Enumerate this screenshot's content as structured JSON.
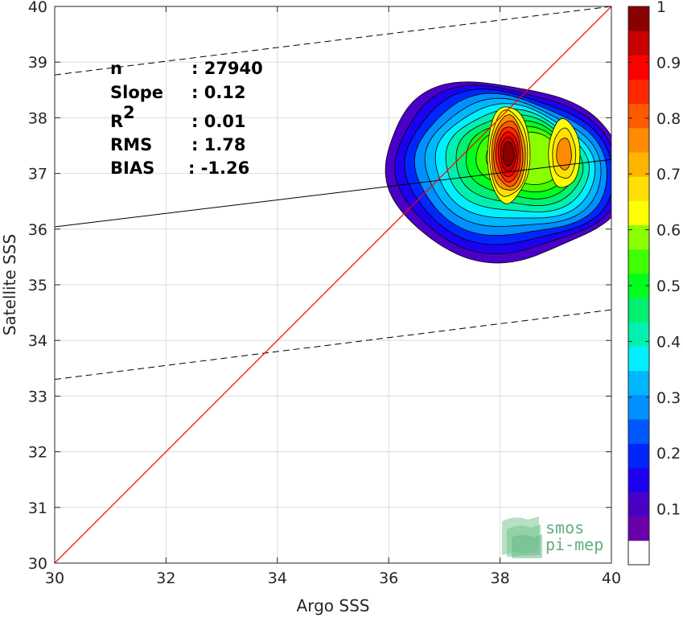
{
  "chart_data": {
    "type": "heatmap",
    "subtype": "density-contour-scatter",
    "xlabel": "Argo SSS",
    "ylabel": "Satellite SSS",
    "xlim": [
      30,
      40
    ],
    "ylim": [
      30,
      40
    ],
    "x_ticks": [
      "30",
      "32",
      "34",
      "36",
      "38",
      "40"
    ],
    "y_ticks": [
      "30",
      "31",
      "32",
      "33",
      "34",
      "35",
      "36",
      "37",
      "38",
      "39",
      "40"
    ],
    "grid": true,
    "stats": [
      {
        "label": "n",
        "value": ": 27940"
      },
      {
        "label": "Slope",
        "value": ": 0.12"
      },
      {
        "label": "R",
        "sup": "2",
        "value": ": 0.01"
      },
      {
        "label": "RMS",
        "value": ": 1.78"
      },
      {
        "label": "BIAS",
        "value": ": -1.26"
      }
    ],
    "identity_line": {
      "x": [
        30,
        40
      ],
      "y": [
        30,
        40
      ],
      "color": "#ff0000"
    },
    "fit_line": {
      "x": [
        30,
        40
      ],
      "y": [
        36.04,
        37.25
      ],
      "color": "#000000"
    },
    "dashed_bounds": [
      {
        "x": [
          30,
          40
        ],
        "y": [
          38.77,
          40.0
        ]
      },
      {
        "x": [
          30,
          40
        ],
        "y": [
          33.3,
          34.55
        ]
      }
    ],
    "density_peaks": [
      {
        "x": 38.15,
        "y": 37.35,
        "level": 1.0
      },
      {
        "x": 39.15,
        "y": 37.35,
        "level": 0.75
      }
    ],
    "colorbar": {
      "range": [
        0,
        1
      ],
      "tick_labels": [
        "0.1",
        "0.2",
        "0.3",
        "0.4",
        "0.5",
        "0.6",
        "0.7",
        "0.8",
        "0.9",
        "1"
      ],
      "colors": [
        "#ffffff",
        "#6a00aa",
        "#4b00c8",
        "#1e00f0",
        "#0026ff",
        "#0058ff",
        "#0090ff",
        "#00b6ff",
        "#00f0ff",
        "#00f0b0",
        "#00f070",
        "#00ff1e",
        "#40ff00",
        "#8aff00",
        "#ffff00",
        "#ffe000",
        "#ffb400",
        "#ff8c00",
        "#ff5a00",
        "#ff2800",
        "#ff0000",
        "#c80000",
        "#8a0000"
      ]
    }
  },
  "logo": {
    "line1": "smos",
    "line2": "pi-mep"
  },
  "colors": {
    "identity": "#ff0000",
    "fit": "#000000",
    "grid": "#dcdcdc",
    "axis": "#262626"
  }
}
